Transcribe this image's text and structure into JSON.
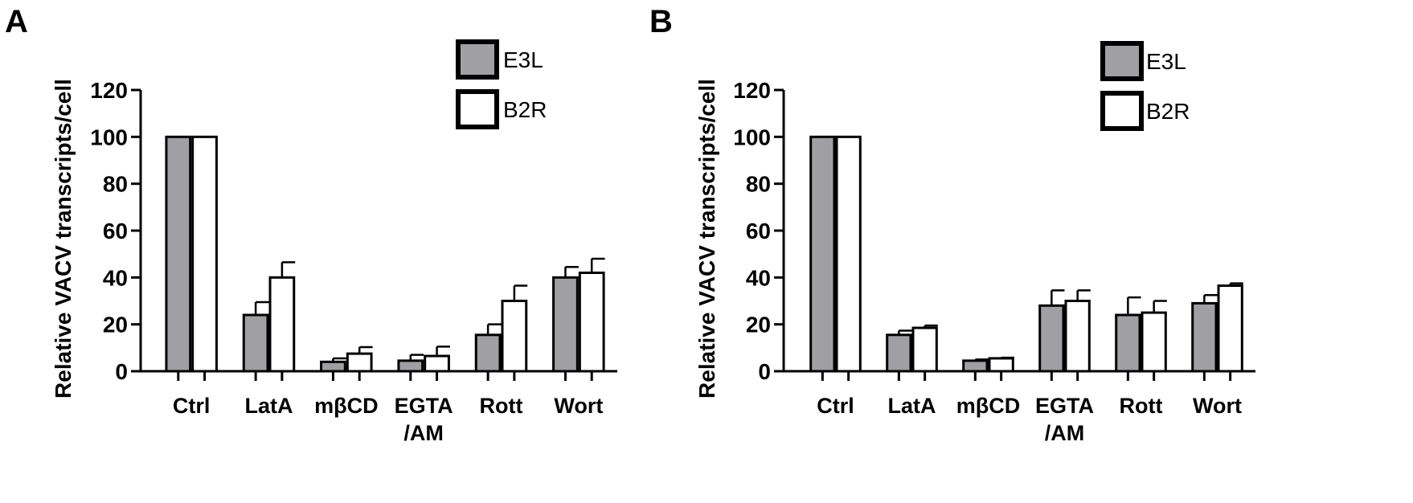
{
  "chart_data": [
    {
      "panel": "A",
      "type": "bar",
      "ylabel": "Relative VACV transcripts/cell",
      "ylim": [
        0,
        120
      ],
      "yticks": [
        0,
        20,
        40,
        60,
        80,
        100,
        120
      ],
      "categories": [
        [
          "Ctrl"
        ],
        [
          "LatA"
        ],
        [
          "mβCD"
        ],
        [
          "EGTA",
          "/AM"
        ],
        [
          "Rott"
        ],
        [
          "Wort"
        ]
      ],
      "legend_placement": "top-right",
      "series": [
        {
          "name": "E3L",
          "color": "#a0a0a4",
          "values": [
            100,
            24,
            4,
            4.5,
            15.5,
            40
          ],
          "errors": [
            0,
            5.5,
            1.5,
            2.5,
            4.5,
            4.5
          ]
        },
        {
          "name": "B2R",
          "color": "#ffffff",
          "values": [
            100,
            40,
            7.5,
            6.5,
            30,
            42
          ],
          "errors": [
            0,
            6.5,
            2.8,
            4,
            6.5,
            6
          ]
        }
      ]
    },
    {
      "panel": "B",
      "type": "bar",
      "ylabel": "Relative VACV transcripts/cell",
      "ylim": [
        0,
        120
      ],
      "yticks": [
        0,
        20,
        40,
        60,
        80,
        100,
        120
      ],
      "categories": [
        [
          "Ctrl"
        ],
        [
          "LatA"
        ],
        [
          "mβCD"
        ],
        [
          "EGTA",
          "/AM"
        ],
        [
          "Rott"
        ],
        [
          "Wort"
        ]
      ],
      "legend_placement": "top-right",
      "series": [
        {
          "name": "E3L",
          "color": "#a0a0a4",
          "values": [
            100,
            15.5,
            4.5,
            28,
            24,
            29
          ],
          "errors": [
            0,
            1.8,
            0.5,
            6.5,
            7.5,
            3.5
          ]
        },
        {
          "name": "B2R",
          "color": "#ffffff",
          "values": [
            100,
            18.5,
            5.5,
            30,
            25,
            36.5
          ],
          "errors": [
            0,
            1,
            0.3,
            4.5,
            5,
            1
          ]
        }
      ]
    }
  ]
}
